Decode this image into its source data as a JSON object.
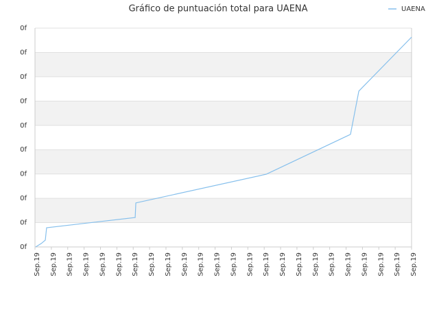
{
  "chart_data": {
    "type": "line",
    "title": "Gráfico de puntuación total para UAENA",
    "series": [
      {
        "name": "UAENA",
        "color": "#85bfec",
        "x": [
          0.04,
          0.38,
          0.63,
          0.71,
          6.12,
          6.16,
          14.12,
          19.27,
          19.78,
          23
        ],
        "values": [
          0,
          0.14,
          0.28,
          0.79,
          1.21,
          1.81,
          2.99,
          4.63,
          6.41,
          8.63
        ]
      }
    ],
    "xlim": [
      0,
      23
    ],
    "xticks": [
      {
        "value": 0,
        "label": "Sep.19"
      },
      {
        "value": 1,
        "label": "Sep.19"
      },
      {
        "value": 2,
        "label": "Sep.19"
      },
      {
        "value": 3,
        "label": "Sep.19"
      },
      {
        "value": 4,
        "label": "Sep.19"
      },
      {
        "value": 5,
        "label": "Sep.19"
      },
      {
        "value": 6,
        "label": "Sep.19"
      },
      {
        "value": 7,
        "label": "Sep.19"
      },
      {
        "value": 8,
        "label": "Sep.19"
      },
      {
        "value": 9,
        "label": "Sep.19"
      },
      {
        "value": 10,
        "label": "Sep.19"
      },
      {
        "value": 11,
        "label": "Sep.19"
      },
      {
        "value": 12,
        "label": "Sep.19"
      },
      {
        "value": 13,
        "label": "Sep.19"
      },
      {
        "value": 14,
        "label": "Sep.19"
      },
      {
        "value": 15,
        "label": "Sep.19"
      },
      {
        "value": 16,
        "label": "Sep.19"
      },
      {
        "value": 17,
        "label": "Sep.19"
      },
      {
        "value": 18,
        "label": "Sep.19"
      },
      {
        "value": 19,
        "label": "Sep.19"
      },
      {
        "value": 20,
        "label": "Sep.19"
      },
      {
        "value": 21,
        "label": "Sep.19"
      },
      {
        "value": 22,
        "label": "Sep.19"
      },
      {
        "value": 23,
        "label": "Sep.19"
      }
    ],
    "ylim": [
      0,
      9
    ],
    "yticks": [
      {
        "value": 0,
        "label": "0f"
      },
      {
        "value": 1,
        "label": "0f"
      },
      {
        "value": 2,
        "label": "0f"
      },
      {
        "value": 3,
        "label": "0f"
      },
      {
        "value": 4,
        "label": "0f"
      },
      {
        "value": 5,
        "label": "0f"
      },
      {
        "value": 6,
        "label": "0f"
      },
      {
        "value": 7,
        "label": "0f"
      },
      {
        "value": 8,
        "label": "0f"
      },
      {
        "value": 9,
        "label": "0f"
      }
    ],
    "grid": true,
    "legend": "top-right"
  }
}
